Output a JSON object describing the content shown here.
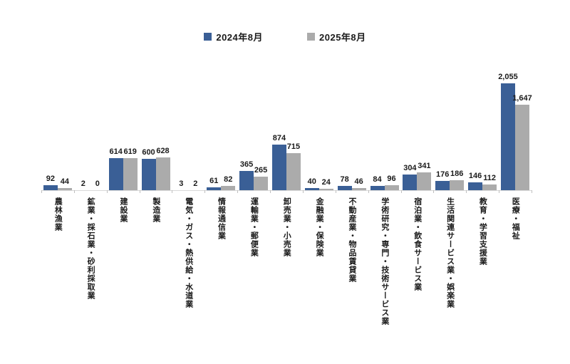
{
  "legend": {
    "items": [
      {
        "label": "2024年8月",
        "color": "#3a5f96"
      },
      {
        "label": "2025年8月",
        "color": "#ababab"
      }
    ]
  },
  "chart_data": {
    "type": "bar",
    "title": "",
    "xlabel": "",
    "ylabel": "",
    "ylim": [
      0,
      2200
    ],
    "grid": false,
    "legend_position": "top-center",
    "value_labels_shown": true,
    "categories": [
      "農林漁業",
      "鉱業・採石業・砂利採取業",
      "建設業",
      "製造業",
      "電気・ガス・熱供給・水道業",
      "情報通信業",
      "運輸業・郵便業",
      "卸売業・小売業",
      "金融業・保険業",
      "不動産業・物品賃貸業",
      "学術研究・専門・技術サービス業",
      "宿泊業・飲食サービス業",
      "生活関連サービス業・娯楽業",
      "教育・学習支援業",
      "医療・福祉"
    ],
    "series": [
      {
        "name": "2024年8月",
        "color": "#3a5f96",
        "values": [
          92,
          2,
          614,
          600,
          3,
          61,
          365,
          874,
          40,
          78,
          84,
          304,
          176,
          146,
          2055
        ]
      },
      {
        "name": "2025年8月",
        "color": "#ababab",
        "values": [
          44,
          0,
          619,
          628,
          2,
          82,
          265,
          715,
          24,
          46,
          96,
          341,
          186,
          112,
          1647
        ]
      }
    ],
    "axis_color": "#d9d9d9",
    "tick_color": "#bfbfbf",
    "label_color": "#1a1a1a"
  }
}
